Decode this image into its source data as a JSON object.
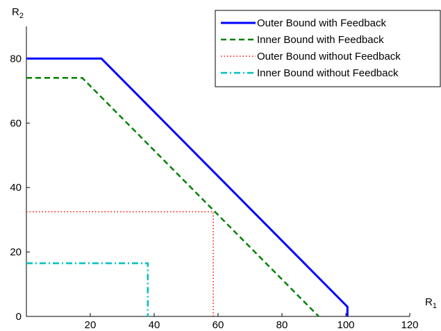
{
  "chart_data": {
    "type": "line",
    "title": "",
    "xlabel": "R",
    "xlabel_sub": "1",
    "ylabel": "R",
    "ylabel_sub": "2",
    "xlim": [
      0,
      120
    ],
    "ylim": [
      0,
      90
    ],
    "xticks": [
      20,
      40,
      60,
      80,
      100,
      120
    ],
    "yticks": [
      0,
      20,
      40,
      60,
      80
    ],
    "grid": false,
    "legend_position": "top-right",
    "series": [
      {
        "name": "Outer Bound with Feedback",
        "color": "#0000ff",
        "style": "solid",
        "points": [
          [
            0,
            80
          ],
          [
            23.5,
            80
          ],
          [
            100.5,
            3
          ],
          [
            100.5,
            0
          ]
        ]
      },
      {
        "name": "Inner Bound with Feedback",
        "color": "#008000",
        "style": "dashed",
        "points": [
          [
            0,
            74
          ],
          [
            17.5,
            74
          ],
          [
            91.5,
            0
          ]
        ]
      },
      {
        "name": "Outer Bound without Feedback",
        "color": "#ff0000",
        "style": "dotted",
        "points": [
          [
            0,
            32.5
          ],
          [
            58.5,
            32.5
          ],
          [
            58.5,
            0
          ]
        ]
      },
      {
        "name": "Inner Bound without Feedback",
        "color": "#00bfbf",
        "style": "dashdot",
        "points": [
          [
            0,
            16.5
          ],
          [
            38,
            16.5
          ],
          [
            38,
            0
          ]
        ]
      }
    ]
  }
}
